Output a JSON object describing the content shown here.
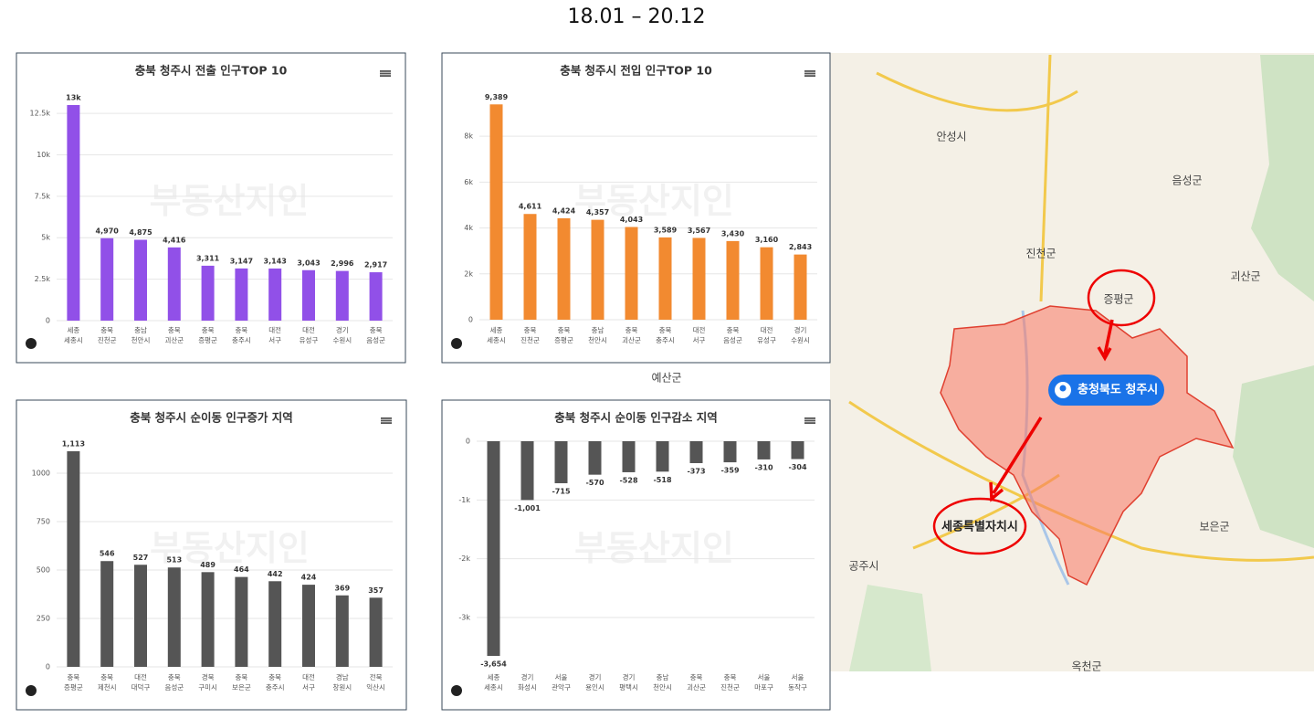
{
  "title": "18.01 – 20.12",
  "watermark": "부동산지인",
  "chart_data": [
    {
      "type": "bar",
      "title": "충북 청주시 전출 인구TOP 10",
      "color": "#9150e8",
      "categories": [
        [
          "세종",
          "세종시"
        ],
        [
          "충북",
          "진천군"
        ],
        [
          "충남",
          "천안시"
        ],
        [
          "충북",
          "괴산군"
        ],
        [
          "충북",
          "증평군"
        ],
        [
          "충북",
          "충주시"
        ],
        [
          "대전",
          "서구"
        ],
        [
          "대전",
          "유성구"
        ],
        [
          "경기",
          "수원시"
        ],
        [
          "충북",
          "음성군"
        ]
      ],
      "values": [
        13000,
        4970,
        4875,
        4416,
        3311,
        3147,
        3143,
        3043,
        2996,
        2917
      ],
      "value_labels": [
        "13k",
        "4,970",
        "4,875",
        "4,416",
        "3,311",
        "3,147",
        "3,143",
        "3,043",
        "2,996",
        "2,917"
      ],
      "ylim": [
        0,
        13000
      ],
      "yticks": [
        0,
        {
          "value": 2500,
          "label": "2.5k"
        },
        {
          "value": 5000,
          "label": "5k"
        },
        {
          "value": 7500,
          "label": "7.5k"
        },
        {
          "value": 10000,
          "label": "10k"
        },
        {
          "value": 12500,
          "label": "12.5k"
        }
      ],
      "grid": true
    },
    {
      "type": "bar",
      "title": "충북 청주시 전입 인구TOP 10",
      "color": "#f28a30",
      "categories": [
        [
          "세종",
          "세종시"
        ],
        [
          "충북",
          "진천군"
        ],
        [
          "충북",
          "증평군"
        ],
        [
          "충남",
          "천안시"
        ],
        [
          "충북",
          "괴산군"
        ],
        [
          "충북",
          "충주시"
        ],
        [
          "대전",
          "서구"
        ],
        [
          "충북",
          "음성군"
        ],
        [
          "대전",
          "유성구"
        ],
        [
          "경기",
          "수원시"
        ]
      ],
      "values": [
        9389,
        4611,
        4424,
        4357,
        4043,
        3589,
        3567,
        3430,
        3160,
        2843
      ],
      "value_labels": [
        "9,389",
        "4,611",
        "4,424",
        "4,357",
        "4,043",
        "3,589",
        "3,567",
        "3,430",
        "3,160",
        "2,843"
      ],
      "ylim": [
        0,
        9400
      ],
      "yticks": [
        0,
        {
          "value": 2000,
          "label": "2k"
        },
        {
          "value": 4000,
          "label": "4k"
        },
        {
          "value": 6000,
          "label": "6k"
        },
        {
          "value": 8000,
          "label": "8k"
        }
      ],
      "grid": true
    },
    {
      "type": "bar",
      "title": "충북 청주시 순이동 인구증가 지역",
      "color": "#555555",
      "categories": [
        [
          "충북",
          "증평군"
        ],
        [
          "충북",
          "제천시"
        ],
        [
          "대전",
          "대덕구"
        ],
        [
          "충북",
          "음성군"
        ],
        [
          "경북",
          "구미시"
        ],
        [
          "충북",
          "보은군"
        ],
        [
          "충북",
          "충주시"
        ],
        [
          "대전",
          "서구"
        ],
        [
          "경남",
          "창원시"
        ],
        [
          "전북",
          "익산시"
        ]
      ],
      "values": [
        1113,
        546,
        527,
        513,
        489,
        464,
        442,
        424,
        369,
        357
      ],
      "value_labels": [
        "1,113",
        "546",
        "527",
        "513",
        "489",
        "464",
        "442",
        "424",
        "369",
        "357"
      ],
      "ylim": [
        0,
        1113
      ],
      "yticks": [
        0,
        250,
        500,
        750,
        1000
      ],
      "grid": true
    },
    {
      "type": "bar",
      "title": "충북 청주시 순이동 인구감소 지역",
      "color": "#555555",
      "categories": [
        [
          "세종",
          "세종시"
        ],
        [
          "경기",
          "화성시"
        ],
        [
          "서울",
          "관악구"
        ],
        [
          "경기",
          "용인시"
        ],
        [
          "경기",
          "평택시"
        ],
        [
          "충남",
          "천안시"
        ],
        [
          "충북",
          "괴산군"
        ],
        [
          "충북",
          "진천군"
        ],
        [
          "서울",
          "마포구"
        ],
        [
          "서울",
          "동작구"
        ]
      ],
      "values": [
        -3654,
        -1001,
        -715,
        -570,
        -528,
        -518,
        -373,
        -359,
        -310,
        -304
      ],
      "value_labels": [
        "-3,654",
        "-1,001",
        "-715",
        "-570",
        "-528",
        "-518",
        "-373",
        "-359",
        "-310",
        "-304"
      ],
      "ylim": [
        -3654,
        0
      ],
      "yticks": [
        {
          "value": -3000,
          "label": "-3k"
        },
        {
          "value": -2000,
          "label": "-2k"
        },
        {
          "value": -1000,
          "label": "-1k"
        },
        0
      ],
      "grid": true
    }
  ],
  "map": {
    "labels": [
      {
        "text": "안성시"
      },
      {
        "text": "음성군"
      },
      {
        "text": "진천군"
      },
      {
        "text": "괴산군"
      },
      {
        "text": "증평군"
      },
      {
        "text": "보은군"
      },
      {
        "text": "공주시"
      },
      {
        "text": "예산군"
      },
      {
        "text": "옥천군"
      },
      {
        "text": "세종특별자치시"
      }
    ],
    "pin": "충청북도 청주시"
  }
}
